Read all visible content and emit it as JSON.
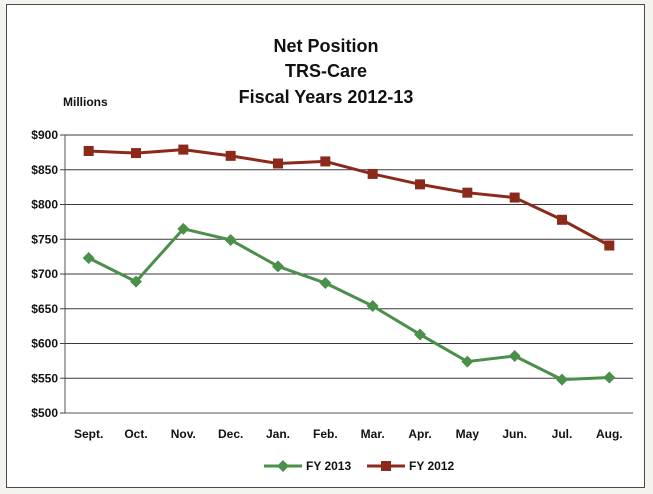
{
  "chart_data": {
    "type": "line",
    "title_lines": [
      "Net Position",
      "TRS-Care",
      "Fiscal Years 2012-13"
    ],
    "units_label": "Millions",
    "categories": [
      "Sept.",
      "Oct.",
      "Nov.",
      "Dec.",
      "Jan.",
      "Feb.",
      "Mar.",
      "Apr.",
      "May",
      "Jun.",
      "Jul.",
      "Aug."
    ],
    "y_ticks": [
      "$500",
      "$550",
      "$600",
      "$650",
      "$700",
      "$750",
      "$800",
      "$850",
      "$900"
    ],
    "ylim": [
      500,
      900
    ],
    "grid": true,
    "legend_position": "bottom",
    "series": [
      {
        "name": "FY 2013",
        "color": "#4a8f4a",
        "marker": "diamond",
        "values": [
          723,
          689,
          765,
          749,
          711,
          687,
          654,
          613,
          574,
          582,
          548,
          551
        ]
      },
      {
        "name": "FY 2012",
        "color": "#8b2a1a",
        "marker": "square",
        "values": [
          877,
          874,
          879,
          870,
          859,
          862,
          844,
          829,
          817,
          810,
          778,
          741
        ]
      }
    ]
  }
}
